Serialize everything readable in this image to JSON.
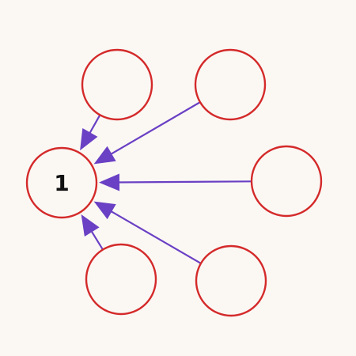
{
  "colors": {
    "background": "#fbf8f4",
    "node_stroke": "#d42a2a",
    "node_fill": "#fbf8f4",
    "arrow": "#6a40c4",
    "label": "#111111"
  },
  "nodes": [
    {
      "id": "center",
      "label": "1"
    },
    {
      "id": "top-left",
      "label": ""
    },
    {
      "id": "top-right",
      "label": ""
    },
    {
      "id": "right",
      "label": ""
    },
    {
      "id": "bottom-right",
      "label": ""
    },
    {
      "id": "bottom-left",
      "label": ""
    }
  ],
  "edges": [
    {
      "from": "top-left",
      "to": "center"
    },
    {
      "from": "top-right",
      "to": "center"
    },
    {
      "from": "right",
      "to": "center"
    },
    {
      "from": "bottom-right",
      "to": "center"
    },
    {
      "from": "bottom-left",
      "to": "center"
    }
  ]
}
